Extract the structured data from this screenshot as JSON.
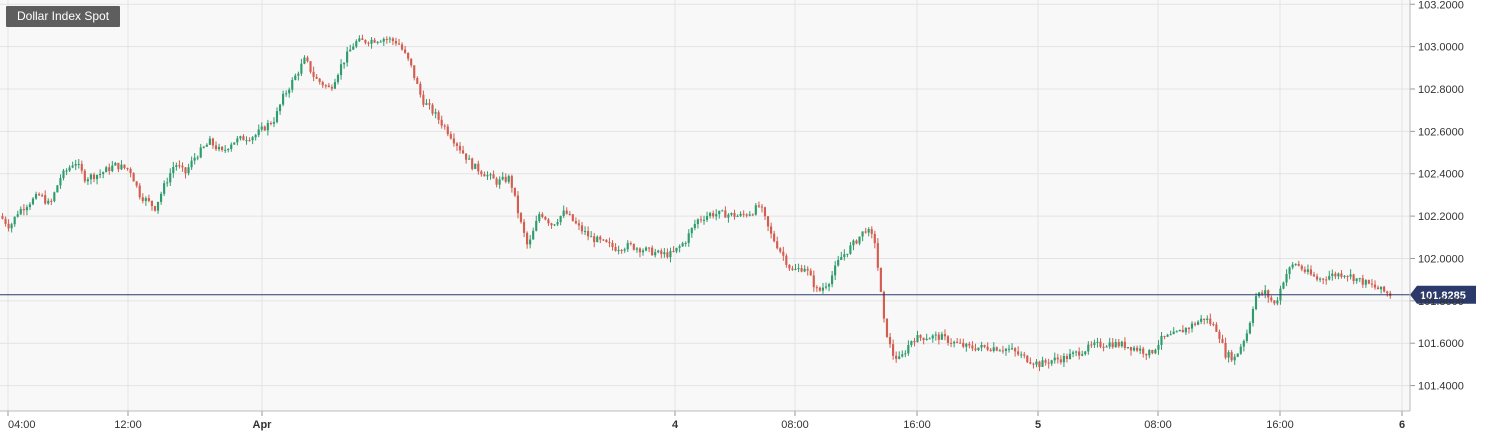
{
  "chart_data": {
    "type": "candlestick",
    "title": "Dollar Index Spot",
    "last_price_label": "101.8285",
    "last_price": 101.8285,
    "ylim": [
      101.28,
      103.22
    ],
    "y_ticks": [
      "103.2000",
      "103.0000",
      "102.8000",
      "102.6000",
      "102.4000",
      "102.2000",
      "102.0000",
      "101.8000",
      "101.6000",
      "101.4000"
    ],
    "x_ticks": [
      "04:00",
      "12:00",
      "Apr",
      "4",
      "08:00",
      "16:00",
      "5",
      "08:00",
      "16:00",
      "6"
    ],
    "grid": true,
    "colors": {
      "up": "#2e9c6d",
      "down": "#d35d4e",
      "grid": "#e3e3e3",
      "plot_bg": "#f8f8f8",
      "last_price_line": "#2b3a6b",
      "last_price_tag": "#2b3a6b",
      "title_bg": "#5e5e5e"
    },
    "path_points": [
      [
        0,
        102.2
      ],
      [
        10,
        102.15
      ],
      [
        18,
        102.22
      ],
      [
        28,
        102.26
      ],
      [
        40,
        102.3
      ],
      [
        50,
        102.25
      ],
      [
        60,
        102.38
      ],
      [
        75,
        102.46
      ],
      [
        85,
        102.38
      ],
      [
        100,
        102.4
      ],
      [
        115,
        102.44
      ],
      [
        130,
        102.42
      ],
      [
        140,
        102.3
      ],
      [
        155,
        102.24
      ],
      [
        165,
        102.35
      ],
      [
        175,
        102.45
      ],
      [
        185,
        102.4
      ],
      [
        195,
        102.48
      ],
      [
        210,
        102.55
      ],
      [
        222,
        102.5
      ],
      [
        232,
        102.55
      ],
      [
        245,
        102.57
      ],
      [
        255,
        102.58
      ],
      [
        265,
        102.62
      ],
      [
        275,
        102.66
      ],
      [
        283,
        102.76
      ],
      [
        293,
        102.84
      ],
      [
        305,
        102.94
      ],
      [
        315,
        102.85
      ],
      [
        330,
        102.8
      ],
      [
        342,
        102.92
      ],
      [
        355,
        103.02
      ],
      [
        370,
        103.03
      ],
      [
        385,
        103.04
      ],
      [
        398,
        103.02
      ],
      [
        410,
        102.92
      ],
      [
        422,
        102.75
      ],
      [
        435,
        102.68
      ],
      [
        448,
        102.6
      ],
      [
        460,
        102.52
      ],
      [
        472,
        102.44
      ],
      [
        485,
        102.4
      ],
      [
        497,
        102.36
      ],
      [
        510,
        102.38
      ],
      [
        520,
        102.18
      ],
      [
        528,
        102.05
      ],
      [
        540,
        102.22
      ],
      [
        552,
        102.16
      ],
      [
        565,
        102.22
      ],
      [
        578,
        102.15
      ],
      [
        590,
        102.1
      ],
      [
        600,
        102.08
      ],
      [
        615,
        102.05
      ],
      [
        630,
        102.06
      ],
      [
        645,
        102.04
      ],
      [
        660,
        102.02
      ],
      [
        672,
        102.02
      ],
      [
        685,
        102.08
      ],
      [
        697,
        102.18
      ],
      [
        710,
        102.21
      ],
      [
        725,
        102.21
      ],
      [
        740,
        102.2
      ],
      [
        752,
        102.22
      ],
      [
        760,
        102.25
      ],
      [
        770,
        102.12
      ],
      [
        780,
        102.04
      ],
      [
        792,
        101.94
      ],
      [
        805,
        101.96
      ],
      [
        818,
        101.84
      ],
      [
        830,
        101.9
      ],
      [
        840,
        102.0
      ],
      [
        852,
        102.06
      ],
      [
        866,
        102.14
      ],
      [
        875,
        102.08
      ],
      [
        884,
        101.7
      ],
      [
        892,
        101.55
      ],
      [
        900,
        101.52
      ],
      [
        912,
        101.62
      ],
      [
        925,
        101.63
      ],
      [
        940,
        101.63
      ],
      [
        955,
        101.6
      ],
      [
        968,
        101.58
      ],
      [
        980,
        101.58
      ],
      [
        995,
        101.58
      ],
      [
        1010,
        101.57
      ],
      [
        1025,
        101.53
      ],
      [
        1040,
        101.5
      ],
      [
        1052,
        101.52
      ],
      [
        1065,
        101.53
      ],
      [
        1080,
        101.56
      ],
      [
        1095,
        101.59
      ],
      [
        1110,
        101.6
      ],
      [
        1125,
        101.59
      ],
      [
        1140,
        101.57
      ],
      [
        1150,
        101.55
      ],
      [
        1162,
        101.62
      ],
      [
        1175,
        101.64
      ],
      [
        1190,
        101.68
      ],
      [
        1205,
        101.72
      ],
      [
        1218,
        101.66
      ],
      [
        1225,
        101.55
      ],
      [
        1235,
        101.53
      ],
      [
        1248,
        101.66
      ],
      [
        1255,
        101.82
      ],
      [
        1265,
        101.84
      ],
      [
        1275,
        101.78
      ],
      [
        1285,
        101.92
      ],
      [
        1295,
        101.98
      ],
      [
        1305,
        101.94
      ],
      [
        1318,
        101.9
      ],
      [
        1330,
        101.92
      ],
      [
        1345,
        101.93
      ],
      [
        1358,
        101.9
      ],
      [
        1372,
        101.87
      ],
      [
        1390,
        101.83
      ]
    ]
  }
}
